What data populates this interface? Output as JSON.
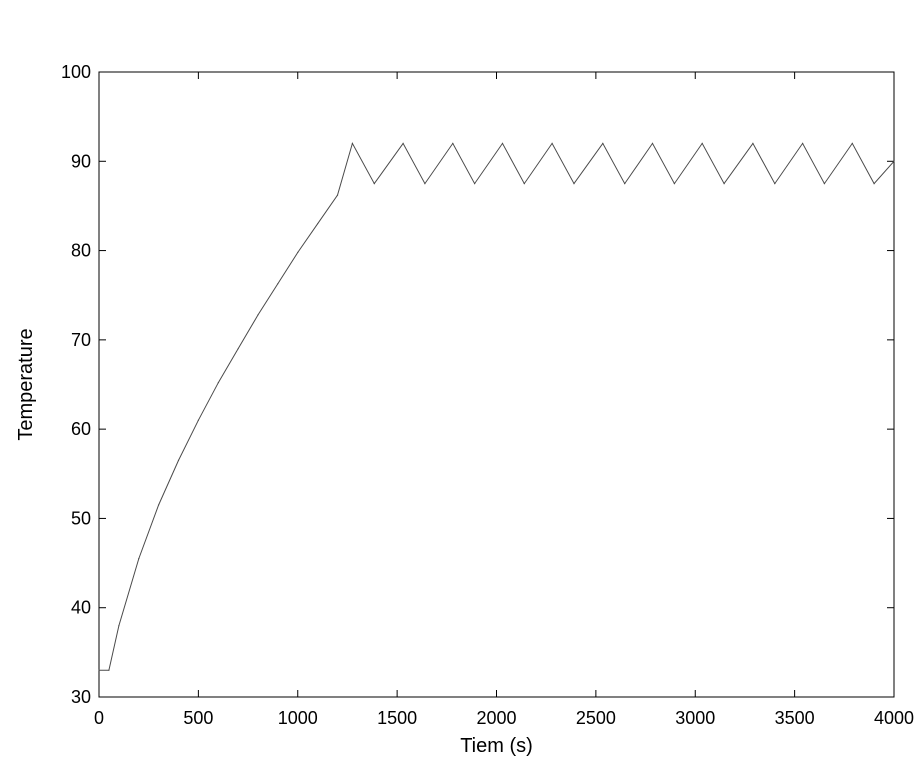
{
  "chart_data": {
    "type": "line",
    "title": "",
    "xlabel": "Tiem (s)",
    "ylabel": "Temperature",
    "xlim": [
      0,
      4000
    ],
    "ylim": [
      30,
      100
    ],
    "xticks": [
      0,
      500,
      1000,
      1500,
      2000,
      2500,
      3000,
      3500,
      4000
    ],
    "yticks": [
      30,
      40,
      50,
      60,
      70,
      80,
      90,
      100
    ],
    "xtick_labels": [
      "0",
      "500",
      "1000",
      "1500",
      "2000",
      "2500",
      "3000",
      "3500",
      "4000"
    ],
    "ytick_labels": [
      "30",
      "40",
      "50",
      "60",
      "70",
      "80",
      "90",
      "100"
    ],
    "grid": false,
    "legend": "none",
    "line_color": "#4a4a4a",
    "series": [
      {
        "x": [
          0,
          50,
          100,
          200,
          300,
          400,
          500,
          600,
          700,
          800,
          900,
          1000,
          1100,
          1200,
          1275,
          1385,
          1530,
          1640,
          1780,
          1890,
          2030,
          2140,
          2280,
          2390,
          2535,
          2645,
          2785,
          2895,
          3035,
          3145,
          3290,
          3400,
          3540,
          3650,
          3790,
          3900,
          4000
        ],
        "y": [
          33,
          33,
          38,
          45.5,
          51.5,
          56.5,
          61,
          65.2,
          69,
          72.8,
          76.3,
          79.8,
          83,
          86.2,
          92,
          87.5,
          92,
          87.5,
          92,
          87.5,
          92,
          87.5,
          92,
          87.5,
          92,
          87.5,
          92,
          87.5,
          92,
          87.5,
          92,
          87.5,
          92,
          87.5,
          92,
          87.5,
          90
        ]
      }
    ]
  }
}
